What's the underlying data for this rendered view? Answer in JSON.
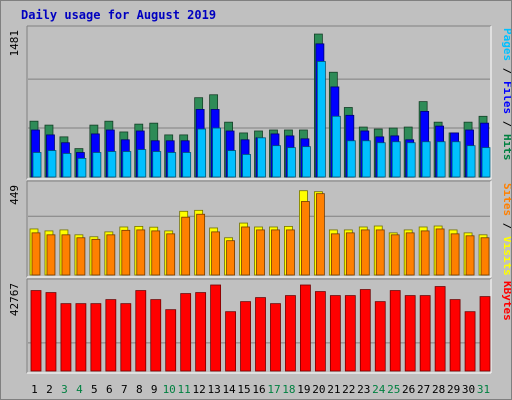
{
  "page": {
    "title": "Daily usage for August 2019"
  },
  "chart_data": {
    "type": "bar",
    "title": "Daily usage for August 2019",
    "days": [
      "1",
      "2",
      "3",
      "4",
      "5",
      "6",
      "7",
      "8",
      "9",
      "10",
      "11",
      "12",
      "13",
      "14",
      "15",
      "16",
      "17",
      "18",
      "19",
      "20",
      "21",
      "22",
      "23",
      "24",
      "25",
      "26",
      "27",
      "28",
      "29",
      "30",
      "31"
    ],
    "weekend_days": [
      "3",
      "4",
      "10",
      "11",
      "17",
      "18",
      "24",
      "25",
      "31"
    ],
    "panels": [
      {
        "name": "hits-panel",
        "ymax_label": "1481",
        "ymax": 1481,
        "gridlines": [
          1000,
          500
        ],
        "right_label": [
          {
            "text": "Pages",
            "color": "#00c0ff"
          },
          {
            "text": " / ",
            "color": "#000000"
          },
          {
            "text": "Files",
            "color": "#0000ff"
          },
          {
            "text": " / ",
            "color": "#000000"
          },
          {
            "text": "Hits",
            "color": "#008040"
          }
        ],
        "series": [
          {
            "name": "Hits",
            "color": "#2e8b57",
            "values": [
              570,
              530,
              410,
              290,
              530,
              570,
              460,
              540,
              550,
              430,
              430,
              810,
              840,
              560,
              450,
              470,
              480,
              480,
              480,
              1460,
              1070,
              710,
              510,
              490,
              500,
              510,
              770,
              560,
              450,
              560,
              620
            ]
          },
          {
            "name": "Files",
            "color": "#0000ff",
            "values": [
              480,
              430,
              350,
              250,
              440,
              480,
              380,
              470,
              370,
              370,
              370,
              690,
              690,
              470,
              380,
              400,
              440,
              420,
              390,
              1360,
              920,
              630,
              470,
              410,
              420,
              380,
              670,
              520,
              450,
              480,
              550
            ]
          },
          {
            "name": "Pages",
            "color": "#00c0ff",
            "values": [
              250,
              270,
              240,
              190,
              250,
              260,
              260,
              280,
              260,
              250,
              250,
              490,
              500,
              270,
              230,
              400,
              320,
              300,
              310,
              1180,
              620,
              370,
              370,
              350,
              360,
              350,
              360,
              360,
              360,
              320,
              300
            ]
          }
        ]
      },
      {
        "name": "visits-panel",
        "ymax_label": "449",
        "ymax": 449,
        "gridlines": [
          300
        ],
        "right_label": [
          {
            "text": "Sites",
            "color": "#ff8000"
          },
          {
            "text": " / ",
            "color": "#000000"
          },
          {
            "text": "Visits",
            "color": "#ffff00"
          }
        ],
        "series": [
          {
            "name": "Visits",
            "color": "#ffff00",
            "values": [
              235,
              225,
              230,
              205,
              195,
              220,
              245,
              248,
              244,
              225,
              325,
              330,
              240,
              190,
              265,
              245,
              245,
              248,
              430,
              425,
              230,
              230,
              245,
              250,
              215,
              230,
              245,
              250,
              230,
              215,
              205
            ]
          },
          {
            "name": "Sites",
            "color": "#ff8000",
            "values": [
              215,
              205,
              205,
              190,
              182,
              205,
              228,
              230,
              225,
              210,
              295,
              310,
              220,
              175,
              245,
              230,
              230,
              230,
              375,
              415,
              210,
              215,
              230,
              230,
              205,
              215,
              225,
              235,
              210,
              200,
              190
            ]
          }
        ]
      },
      {
        "name": "kbytes-panel",
        "ymax_label": "42767",
        "ymax": 42767,
        "gridlines": [
          14000
        ],
        "right_label": [
          {
            "text": "KBytes",
            "color": "#ff0000"
          }
        ],
        "series": [
          {
            "name": "KBytes",
            "color": "#ff0000",
            "values": [
              40000,
              39000,
              33500,
              33500,
              33500,
              35500,
              33500,
              40000,
              35500,
              30500,
              38500,
              39000,
              42767,
              29500,
              34500,
              36500,
              33500,
              37500,
              42767,
              39500,
              37500,
              37500,
              40500,
              34500,
              40000,
              37500,
              37500,
              42000,
              35500,
              29500,
              37000
            ]
          }
        ]
      }
    ]
  }
}
